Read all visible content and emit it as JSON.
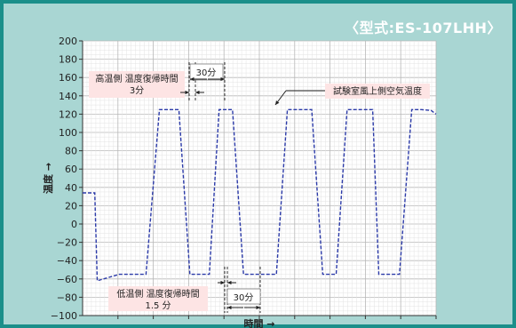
{
  "model_label": "〈型式:ES-107LHH〉",
  "chart_data": {
    "type": "line",
    "title": "",
    "xlabel": "時間 →",
    "ylabel": "温度 →",
    "ylim": [
      -100,
      200
    ],
    "yticks": [
      200,
      180,
      160,
      140,
      120,
      100,
      80,
      60,
      40,
      20,
      0,
      -20,
      -40,
      -60,
      -80,
      -100
    ],
    "ytick_labels": [
      "200",
      "180",
      "160",
      "140",
      "120",
      "100",
      "80",
      "60",
      "40",
      "20",
      "0",
      "−20",
      "−40",
      "−60",
      "−80",
      "−100"
    ],
    "grid": true,
    "series": [
      {
        "name": "試験室風上側空気温度",
        "color": "#2b3aa8",
        "style": "dashed",
        "x": [
          0,
          1,
          1.2,
          3,
          4,
          4.3,
          5.2,
          6.3,
          7.6,
          7.9,
          8.8,
          9.4,
          10.4,
          11.2,
          12,
          12.3,
          13.2,
          14.2,
          15.4,
          15.9,
          16.8,
          17.6,
          18.8,
          19.7,
          20.5,
          20.8,
          21.7,
          22.6,
          23.8,
          24.3,
          25.2,
          26,
          27,
          27.8,
          28.6,
          29
        ],
        "y": [
          34,
          34,
          -62,
          -55,
          -55,
          -55,
          -55,
          125,
          125,
          125,
          -55,
          -55,
          -55,
          125,
          125,
          125,
          -55,
          -55,
          -55,
          -55,
          125,
          125,
          125,
          -55,
          -55,
          -55,
          125,
          125,
          125,
          -55,
          -55,
          -55,
          125,
          125,
          124,
          120
        ]
      }
    ],
    "annotations": [
      {
        "text": "高温側 温度復帰時間",
        "subtext": "3分"
      },
      {
        "text": "30分"
      },
      {
        "text": "試験室風上側空気温度"
      },
      {
        "text": "低温側 温度復帰時間",
        "subtext": "1.5 分"
      },
      {
        "text": "30分"
      }
    ]
  }
}
